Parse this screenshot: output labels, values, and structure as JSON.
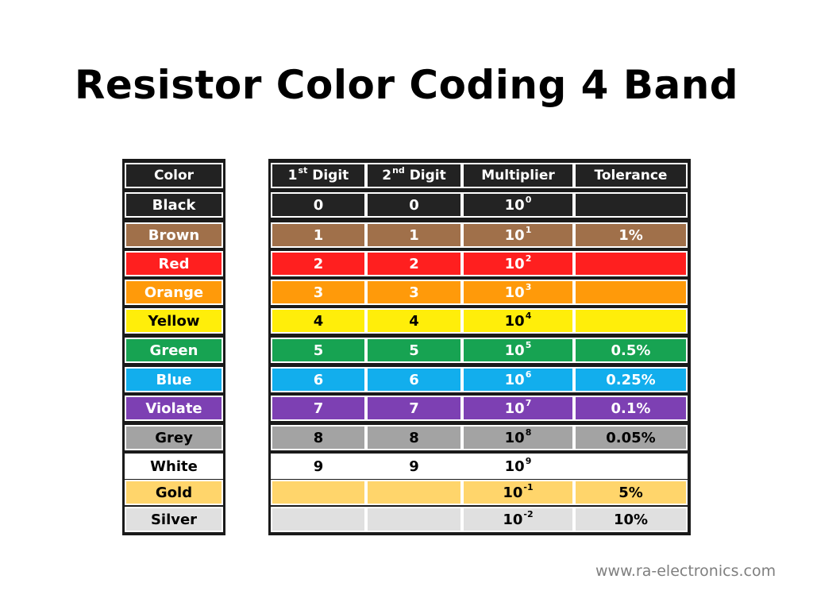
{
  "title": "Resistor Color Coding 4 Band",
  "watermark": "www.ra-electronics.com",
  "headers": {
    "color": "Color",
    "digit1": {
      "base": "1",
      "sup": "st",
      "rest": " Digit"
    },
    "digit2": {
      "base": "2",
      "sup": "nd",
      "rest": " Digit"
    },
    "multiplier": "Multiplier",
    "tolerance": "Tolerance"
  },
  "header_colors": {
    "bg": "#222222",
    "text": "#ffffff"
  },
  "rows": [
    {
      "color": "Black",
      "digit1": "0",
      "digit2": "0",
      "exp": "0",
      "tolerance": "",
      "bg": "#232323",
      "text": "#ffffff"
    },
    {
      "color": "Brown",
      "digit1": "1",
      "digit2": "1",
      "exp": "1",
      "tolerance": "1%",
      "bg": "#a0704a",
      "text": "#ffffff"
    },
    {
      "color": "Red",
      "digit1": "2",
      "digit2": "2",
      "exp": "2",
      "tolerance": "",
      "bg": "#ff1f1f",
      "text": "#ffffff"
    },
    {
      "color": "Orange",
      "digit1": "3",
      "digit2": "3",
      "exp": "3",
      "tolerance": "",
      "bg": "#ff9a0a",
      "text": "#ffffff"
    },
    {
      "color": "Yellow",
      "digit1": "4",
      "digit2": "4",
      "exp": "4",
      "tolerance": "",
      "bg": "#ffee0a",
      "text": "#000000"
    },
    {
      "color": "Green",
      "digit1": "5",
      "digit2": "5",
      "exp": "5",
      "tolerance": "0.5%",
      "bg": "#17a352",
      "text": "#ffffff"
    },
    {
      "color": "Blue",
      "digit1": "6",
      "digit2": "6",
      "exp": "6",
      "tolerance": "0.25%",
      "bg": "#12aeed",
      "text": "#ffffff"
    },
    {
      "color": "Violate",
      "digit1": "7",
      "digit2": "7",
      "exp": "7",
      "tolerance": "0.1%",
      "bg": "#7d40b3",
      "text": "#ffffff"
    },
    {
      "color": "Grey",
      "digit1": "8",
      "digit2": "8",
      "exp": "8",
      "tolerance": "0.05%",
      "bg": "#a3a3a3",
      "text": "#000000"
    },
    {
      "color": "White",
      "digit1": "9",
      "digit2": "9",
      "exp": "9",
      "tolerance": "",
      "bg": "#ffffff",
      "text": "#000000"
    },
    {
      "color": "Gold",
      "digit1": "",
      "digit2": "",
      "exp": "-1",
      "tolerance": "5%",
      "bg": "#ffd56b",
      "text": "#000000"
    },
    {
      "color": "Silver",
      "digit1": "",
      "digit2": "",
      "exp": "-2",
      "tolerance": "10%",
      "bg": "#e0e0e0",
      "text": "#000000"
    }
  ],
  "multiplier_base": "10"
}
